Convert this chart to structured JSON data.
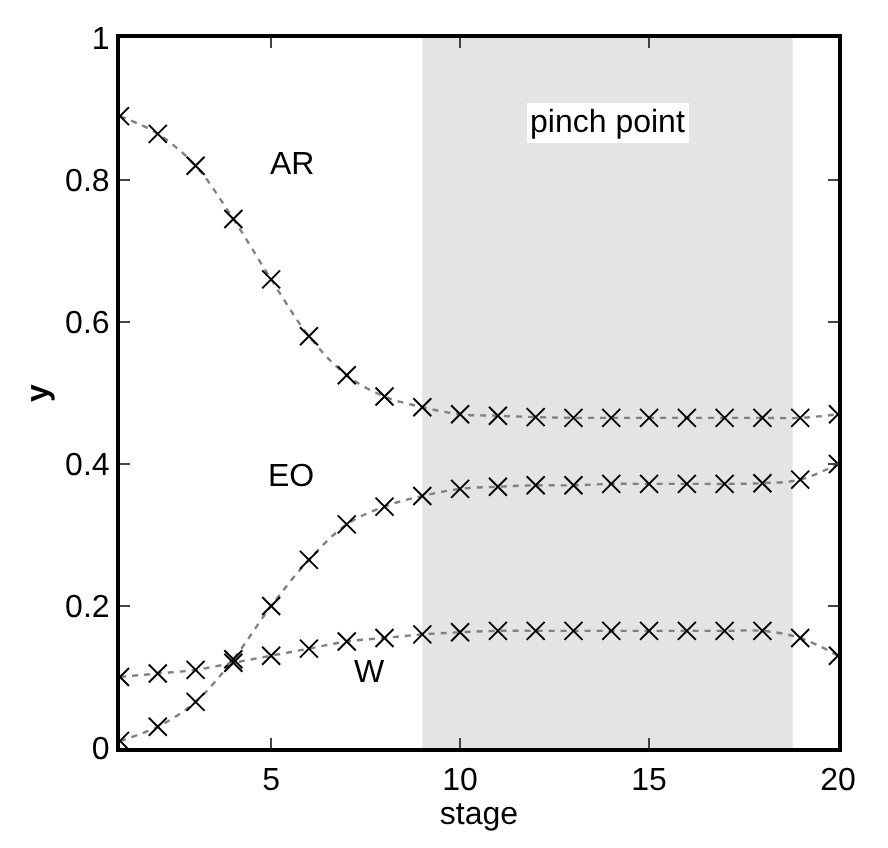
{
  "chart_data": {
    "type": "line",
    "xlabel": "stage",
    "ylabel": "y",
    "x": [
      1,
      2,
      3,
      4,
      5,
      6,
      7,
      8,
      9,
      10,
      11,
      12,
      13,
      14,
      15,
      16,
      17,
      18,
      19,
      20
    ],
    "series": [
      {
        "color": "#808080",
        "values": [
          0.89,
          0.865,
          0.82,
          0.745,
          0.66,
          0.58,
          0.525,
          0.495,
          0.48,
          0.47,
          0.468,
          0.466,
          0.465,
          0.465,
          0.465,
          0.465,
          0.465,
          0.465,
          0.465,
          0.47
        ]
      },
      {
        "color": "#808080",
        "values": [
          0.01,
          0.03,
          0.065,
          0.125,
          0.2,
          0.265,
          0.315,
          0.34,
          0.355,
          0.365,
          0.368,
          0.37,
          0.37,
          0.372,
          0.372,
          0.372,
          0.372,
          0.373,
          0.378,
          0.4
        ]
      },
      {
        "color": "#808080",
        "values": [
          0.1,
          0.105,
          0.11,
          0.12,
          0.13,
          0.14,
          0.15,
          0.155,
          0.16,
          0.163,
          0.165,
          0.165,
          0.165,
          0.165,
          0.165,
          0.165,
          0.165,
          0.165,
          0.155,
          0.13
        ]
      }
    ],
    "annotations": [
      "AR",
      "EO",
      "W"
    ],
    "bands": [
      {
        "axis": "x",
        "from": 9,
        "to": 18.8,
        "label": "pinch point",
        "color": "#e4e4e4"
      }
    ],
    "xlim": [
      1,
      20
    ],
    "xticks": [
      5,
      10,
      15,
      20
    ],
    "ylim": [
      0,
      1
    ],
    "yticks": [
      0,
      0.2,
      0.4,
      0.6,
      0.8,
      1
    ],
    "grid": false,
    "marker": "cross",
    "line_style": "dotted"
  }
}
